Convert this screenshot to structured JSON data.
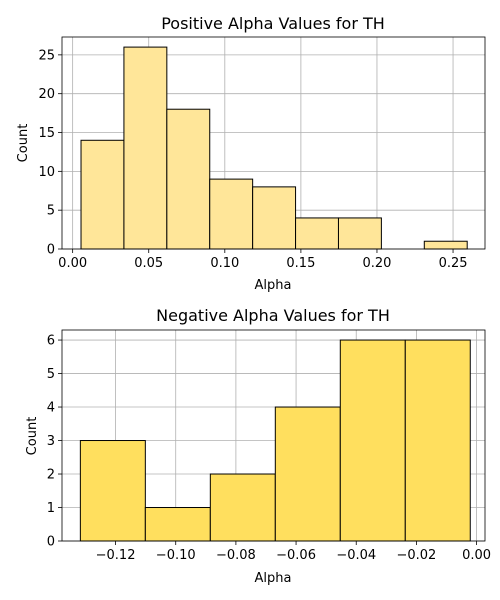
{
  "chart_data": [
    {
      "type": "bar",
      "title": "Positive Alpha Values for TH",
      "xlabel": "Alpha",
      "ylabel": "Count",
      "bin_edges": [
        0.0055,
        0.0337,
        0.0619,
        0.0901,
        0.1183,
        0.1465,
        0.1747,
        0.2029,
        0.2311,
        0.2593
      ],
      "values": [
        14,
        26,
        18,
        9,
        8,
        4,
        4,
        0,
        1
      ],
      "xlim": [
        -0.007,
        0.271
      ],
      "ylim": [
        0,
        27.3
      ],
      "xticks": [
        0.0,
        0.05,
        0.1,
        0.15,
        0.2,
        0.25
      ],
      "xtick_labels": [
        "0.00",
        "0.05",
        "0.10",
        "0.15",
        "0.20",
        "0.25"
      ],
      "yticks": [
        0,
        5,
        10,
        15,
        20,
        25
      ],
      "ytick_labels": [
        "0",
        "5",
        "10",
        "15",
        "20",
        "25"
      ],
      "color": "#ffe699",
      "grid": true
    },
    {
      "type": "bar",
      "title": "Negative Alpha Values for TH",
      "xlabel": "Alpha",
      "ylabel": "Count",
      "bin_edges": [
        -0.1317,
        -0.1101,
        -0.0885,
        -0.0669,
        -0.0453,
        -0.0237,
        -0.0021
      ],
      "values": [
        3,
        1,
        2,
        4,
        6,
        6
      ],
      "xlim": [
        -0.1378,
        0.0028
      ],
      "ylim": [
        0,
        6.3
      ],
      "xticks": [
        -0.12,
        -0.1,
        -0.08,
        -0.06,
        -0.04,
        -0.02,
        0.0
      ],
      "xtick_labels": [
        "−0.12",
        "−0.10",
        "−0.08",
        "−0.06",
        "−0.04",
        "−0.02",
        "0.00"
      ],
      "yticks": [
        0,
        1,
        2,
        3,
        4,
        5,
        6
      ],
      "ytick_labels": [
        "0",
        "1",
        "2",
        "3",
        "4",
        "5",
        "6"
      ],
      "color": "#ffdf5e",
      "grid": true
    }
  ]
}
